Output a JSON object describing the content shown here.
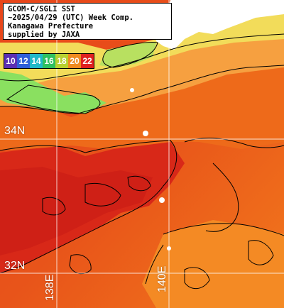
{
  "title": {
    "line1": "GCOM-C/SGLI SST",
    "line2": "~2025/04/29 (UTC) Week Comp.",
    "line3": "Kanagawa Prefecture",
    "line4": "supplied by JAXA"
  },
  "legend": {
    "items": [
      {
        "label": "10",
        "color": "#5b2fb4"
      },
      {
        "label": "12",
        "color": "#2f5fd8"
      },
      {
        "label": "14",
        "color": "#20b8c8"
      },
      {
        "label": "16",
        "color": "#30c060"
      },
      {
        "label": "18",
        "color": "#b8d030"
      },
      {
        "label": "20",
        "color": "#f08a20"
      },
      {
        "label": "22",
        "color": "#e02020"
      }
    ]
  },
  "grid": {
    "lat_labels": [
      "34N",
      "32N"
    ],
    "lon_labels": [
      "138E",
      "140E"
    ]
  },
  "colors": {
    "warm_red": "#de2c16",
    "orange": "#f06a18",
    "light_orange": "#f8a040",
    "yellow": "#f4e060",
    "green": "#80e060",
    "land": "#ffffff",
    "contour": "#000000",
    "gridline": "#ffffff"
  }
}
